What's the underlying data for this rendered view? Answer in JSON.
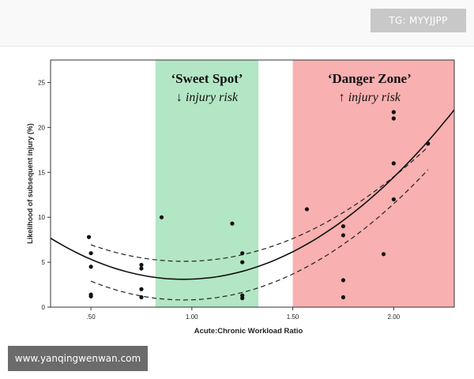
{
  "header": {
    "tag": "TG: MYYJJPP"
  },
  "footer": {
    "watermark": "www.yanqingwenwan.com"
  },
  "chart_data": {
    "type": "scatter",
    "xlabel": "Acute:Chronic Workload Ratio",
    "ylabel": "Likelihood of subsequent injury (%)",
    "xlim": [
      0.3,
      2.3
    ],
    "ylim": [
      0,
      27.5
    ],
    "x_ticks": [
      0.5,
      1.0,
      1.5,
      2.0
    ],
    "x_tick_labels": [
      ".50",
      "1.00",
      "1.50",
      "2.00"
    ],
    "y_ticks": [
      0,
      5,
      10,
      15,
      20,
      25
    ],
    "y_tick_labels": [
      "0",
      "5",
      "10",
      "15",
      "20",
      "25"
    ],
    "grid": false,
    "zones": [
      {
        "name": "sweet-spot",
        "title": "‘Sweet Spot’",
        "subtitle": "↓ injury risk",
        "x_range": [
          0.82,
          1.33
        ],
        "color": "#b3e6c4"
      },
      {
        "name": "danger-zone",
        "title": "‘Danger Zone’",
        "subtitle": "↑ injury risk",
        "x_range": [
          1.5,
          2.3
        ],
        "color": "#f8b0b0"
      }
    ],
    "points": [
      {
        "x": 0.49,
        "y": 7.8
      },
      {
        "x": 0.5,
        "y": 6.0
      },
      {
        "x": 0.5,
        "y": 4.5
      },
      {
        "x": 0.5,
        "y": 1.4
      },
      {
        "x": 0.5,
        "y": 1.2
      },
      {
        "x": 0.75,
        "y": 4.7
      },
      {
        "x": 0.75,
        "y": 4.3
      },
      {
        "x": 0.75,
        "y": 2.0
      },
      {
        "x": 0.75,
        "y": 1.1
      },
      {
        "x": 0.85,
        "y": 10.0
      },
      {
        "x": 1.2,
        "y": 9.3
      },
      {
        "x": 1.25,
        "y": 6.0
      },
      {
        "x": 1.25,
        "y": 5.0
      },
      {
        "x": 1.25,
        "y": 1.3
      },
      {
        "x": 1.25,
        "y": 1.0
      },
      {
        "x": 1.57,
        "y": 10.9
      },
      {
        "x": 1.75,
        "y": 9.0
      },
      {
        "x": 1.75,
        "y": 8.0
      },
      {
        "x": 1.75,
        "y": 3.0
      },
      {
        "x": 1.75,
        "y": 1.1
      },
      {
        "x": 1.95,
        "y": 5.9
      },
      {
        "x": 2.0,
        "y": 21.7
      },
      {
        "x": 2.0,
        "y": 21.0
      },
      {
        "x": 2.0,
        "y": 16.0
      },
      {
        "x": 2.0,
        "y": 12.0
      },
      {
        "x": 2.17,
        "y": 18.2
      }
    ],
    "fit": {
      "type": "quadratic",
      "vertex_x": 0.96,
      "vertex_y": 3.1,
      "a_center": 10.5,
      "a_upper": 8.7,
      "a_lower": 9.9,
      "lower_offset": -2.3,
      "upper_offset": 2.0,
      "band_x_start": 0.5,
      "band_x_end": 2.17
    }
  },
  "colors": {
    "sweet_spot": "#b3e6c4",
    "danger_zone": "#f8b0b0",
    "curve": "#111111",
    "points": "#111111"
  }
}
